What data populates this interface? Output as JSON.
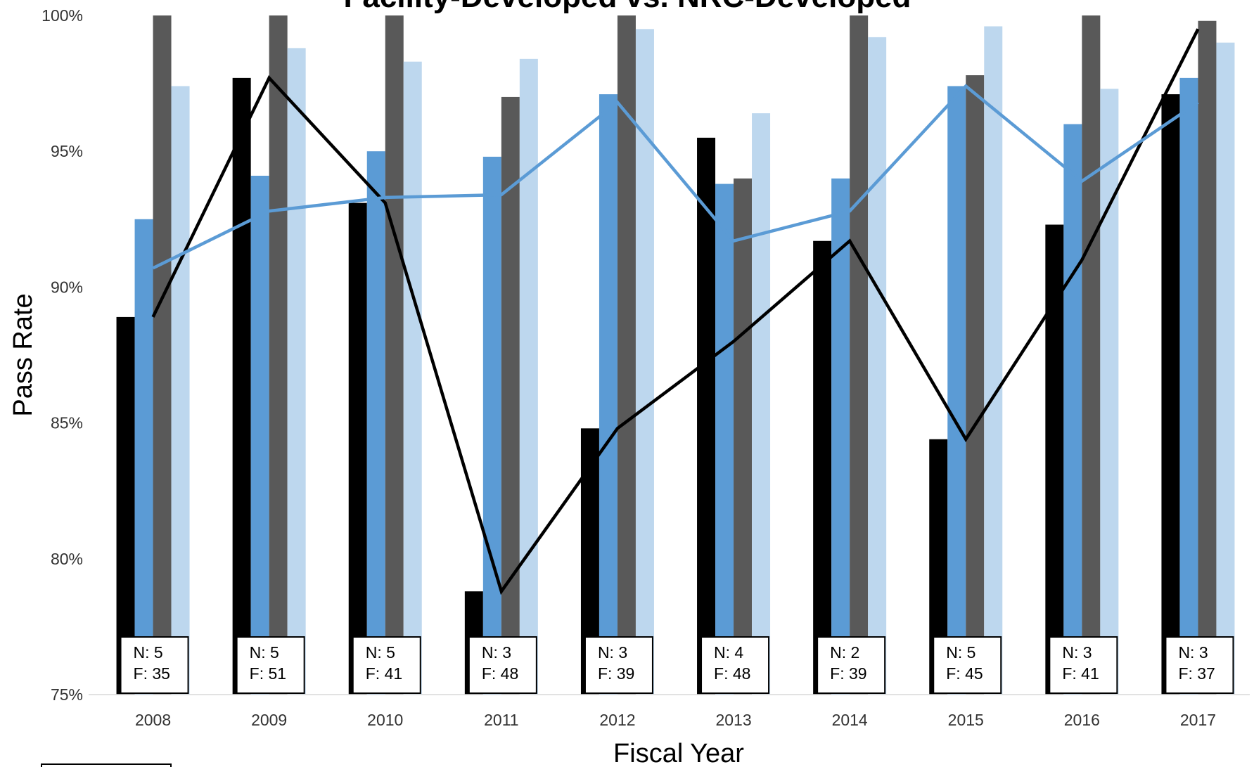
{
  "chart_data": {
    "type": "bar",
    "title": "Facility-Developed vs. NRC-Developed",
    "xlabel": "Fiscal Year",
    "ylabel": "Pass Rate",
    "categories": [
      "2008",
      "2009",
      "2010",
      "2011",
      "2012",
      "2013",
      "2014",
      "2015",
      "2016",
      "2017"
    ],
    "ylim": [
      75,
      100
    ],
    "ytick_values": [
      75,
      80,
      85,
      90,
      95,
      100
    ],
    "ytick_labels": [
      "75%",
      "80%",
      "85%",
      "90%",
      "95%",
      "100%"
    ],
    "series": [
      {
        "values": [
          88.9,
          97.7,
          93.1,
          78.8,
          84.8,
          95.5,
          91.7,
          84.4,
          92.3,
          97.1
        ],
        "color": "#000000"
      },
      {
        "values": [
          92.5,
          94.1,
          95.0,
          94.8,
          97.1,
          93.8,
          94.0,
          97.4,
          96.0,
          97.7
        ],
        "color": "#5b9bd5"
      },
      {
        "values": [
          100,
          100,
          100,
          97.0,
          100,
          94.0,
          100,
          97.8,
          100,
          99.8
        ],
        "color": "#595959"
      },
      {
        "values": [
          97.4,
          98.8,
          98.3,
          98.4,
          99.5,
          96.4,
          99.2,
          99.6,
          97.3,
          99.0
        ],
        "color": "#bdd7ee"
      }
    ],
    "lines": [
      {
        "values": [
          88.9,
          97.7,
          93.1,
          78.8,
          84.8,
          88.0,
          91.7,
          84.4,
          91.0,
          99.5
        ],
        "color": "#000000"
      },
      {
        "values": [
          90.7,
          92.8,
          93.3,
          93.4,
          96.8,
          91.7,
          92.8,
          97.4,
          93.9,
          96.8
        ],
        "color": "#5b9bd5"
      }
    ],
    "annotations": [
      {
        "n": "N: 5",
        "f": "F: 35"
      },
      {
        "n": "N: 5",
        "f": "F: 51"
      },
      {
        "n": "N: 5",
        "f": "F: 41"
      },
      {
        "n": "N: 3",
        "f": "F: 48"
      },
      {
        "n": "N: 3",
        "f": "F: 39"
      },
      {
        "n": "N: 4",
        "f": "F: 48"
      },
      {
        "n": "N: 2",
        "f": "F: 39"
      },
      {
        "n": "N: 5",
        "f": "F: 45"
      },
      {
        "n": "N: 3",
        "f": "F: 41"
      },
      {
        "n": "N: 3",
        "f": "F: 37"
      }
    ],
    "grid": false
  }
}
